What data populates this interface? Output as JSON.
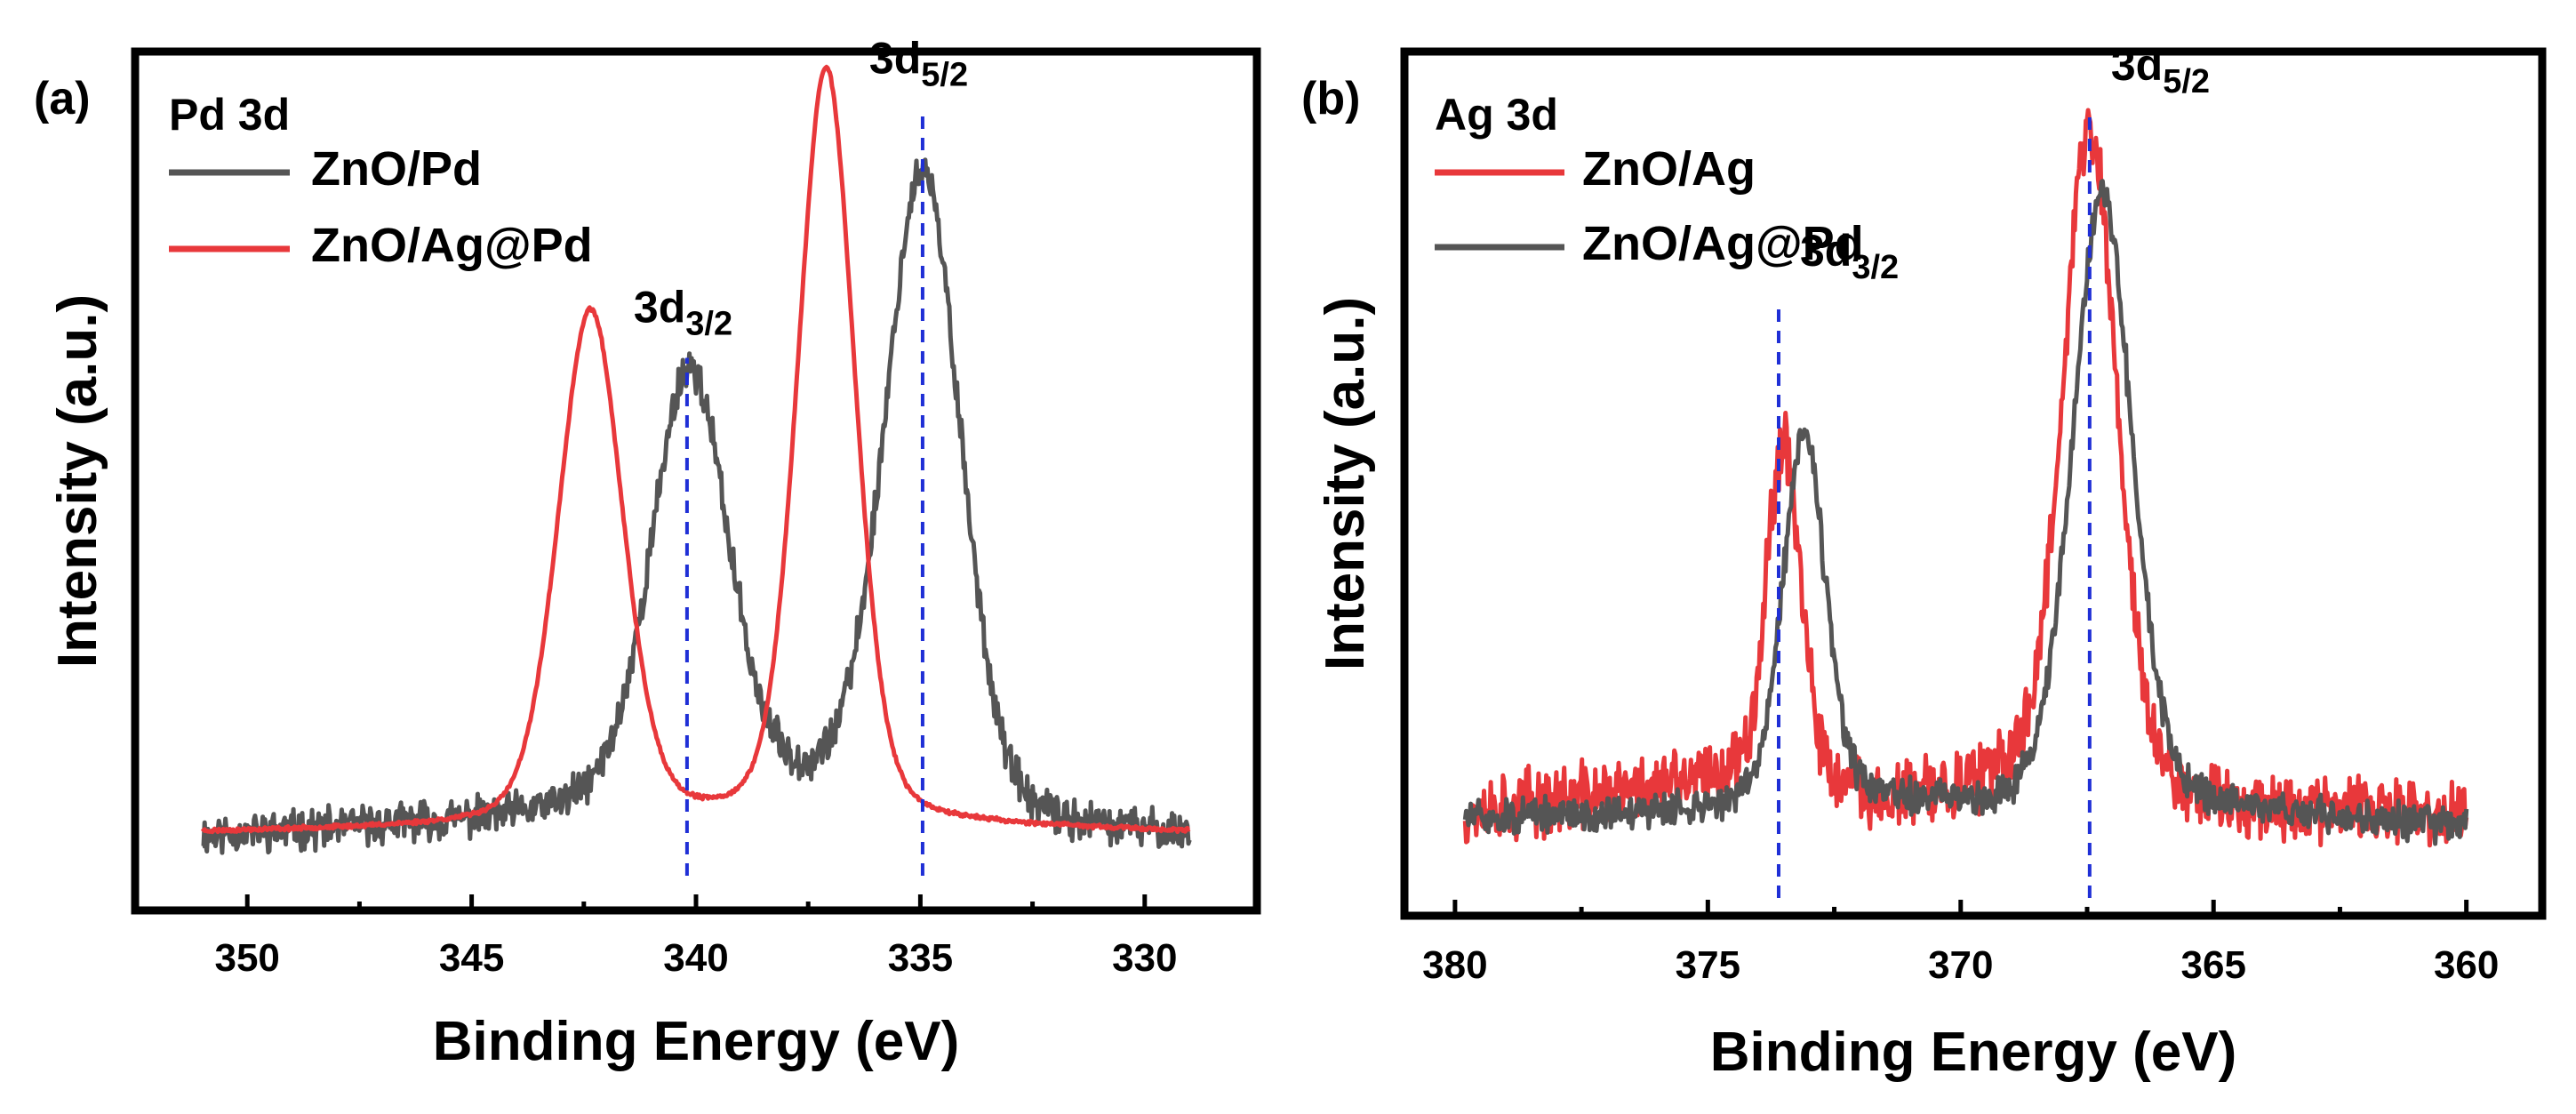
{
  "chart_data": [
    {
      "type": "line",
      "panel_label": "(a)",
      "element": "Pd 3d",
      "xlabel": "Binding Energy (eV)",
      "ylabel": "Intensity (a.u.)",
      "xlim": [
        352.5,
        327.5
      ],
      "ylim": [
        0,
        1
      ],
      "x_ticks": [
        350,
        345,
        340,
        335,
        330
      ],
      "x_ticklabels": [
        "350",
        "345",
        "340",
        "335",
        "330"
      ],
      "x_range": [
        351,
        329
      ],
      "legend": "top-left",
      "series": [
        {
          "name": "ZnO/Pd",
          "color": "#555555",
          "noise": 0.02,
          "seed": 11,
          "baseline": [
            [
              351,
              0.045
            ],
            [
              344,
              0.065
            ],
            [
              339,
              0.1
            ],
            [
              334,
              0.07
            ],
            [
              333,
              0.05
            ],
            [
              329,
              0.045
            ]
          ],
          "peaks": [
            {
              "center": 340.15,
              "height": 0.55,
              "fwhm": 2.0
            },
            {
              "center": 334.95,
              "height": 0.82,
              "fwhm": 2.0
            }
          ]
        },
        {
          "name": "ZnO/Ag@Pd",
          "color": "#e8383b",
          "noise": 0.002,
          "seed": 23,
          "baseline": [
            [
              351,
              0.05
            ],
            [
              340,
              0.06
            ],
            [
              336,
              0.06
            ],
            [
              329,
              0.05
            ]
          ],
          "peaks": [
            {
              "center": 342.35,
              "height": 0.66,
              "fwhm": 1.7
            },
            {
              "center": 337.1,
              "height": 0.97,
              "fwhm": 1.5
            }
          ]
        }
      ],
      "reference_lines": [
        {
          "x": 340.2,
          "y_top": 0.66,
          "label": "3d",
          "sub": "3/2"
        },
        {
          "x": 334.95,
          "y_top": 0.98,
          "label": "3d",
          "sub": "5/2"
        }
      ]
    },
    {
      "type": "line",
      "panel_label": "(b)",
      "element": "Ag 3d",
      "xlabel": "Binding Energy (eV)",
      "ylabel": "Intensity (a.u.)",
      "xlim": [
        381,
        358.5
      ],
      "ylim": [
        0,
        1
      ],
      "x_ticks": [
        380,
        375,
        370,
        365,
        360
      ],
      "x_ticklabels": [
        "380",
        "375",
        "370",
        "365",
        "360"
      ],
      "x_range": [
        379.8,
        360
      ],
      "legend": "top-left",
      "series": [
        {
          "name": "ZnO/Ag",
          "color": "#e8383b",
          "noise": 0.035,
          "seed": 37,
          "baseline": [
            [
              379.8,
              0.1
            ],
            [
              374.5,
              0.14
            ],
            [
              371.5,
              0.11
            ],
            [
              369,
              0.13
            ],
            [
              366,
              0.11
            ],
            [
              360,
              0.09
            ]
          ],
          "peaks": [
            {
              "center": 373.5,
              "height": 0.45,
              "fwhm": 0.8
            },
            {
              "center": 367.45,
              "height": 0.86,
              "fwhm": 1.3
            }
          ]
        },
        {
          "name": "ZnO/Ag@Pd",
          "color": "#555555",
          "noise": 0.018,
          "seed": 51,
          "baseline": [
            [
              379.8,
              0.09
            ],
            [
              375,
              0.1
            ],
            [
              372,
              0.11
            ],
            [
              369,
              0.1
            ],
            [
              365,
              0.1
            ],
            [
              360,
              0.08
            ]
          ],
          "peaks": [
            {
              "center": 373.1,
              "height": 0.48,
              "fwhm": 1.0
            },
            {
              "center": 367.2,
              "height": 0.8,
              "fwhm": 1.4
            }
          ]
        }
      ],
      "reference_lines": [
        {
          "x": 373.6,
          "y_top": 0.76,
          "label": "3d",
          "sub": "3/2"
        },
        {
          "x": 367.45,
          "y_top": 1.0,
          "label": "3d",
          "sub": "5/2"
        }
      ]
    }
  ]
}
